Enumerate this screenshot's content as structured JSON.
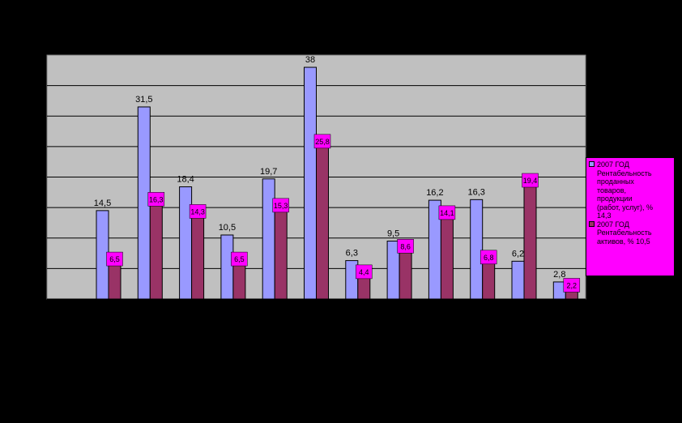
{
  "chart_data": {
    "type": "bar",
    "title": "",
    "xlabel": "",
    "ylabel": "",
    "ylim": [
      0,
      40
    ],
    "grid": true,
    "legend_position": "right",
    "categories": [
      "",
      "",
      "",
      "",
      "",
      "",
      "",
      "",
      "",
      "",
      "",
      ""
    ],
    "series": [
      {
        "name": "2007 ГОД Рентабельность проданных товаров, продукции (работ, услуг), % 14,3",
        "color": "#9999ff",
        "values": [
          14.5,
          31.5,
          18.4,
          10.5,
          19.7,
          38,
          6.3,
          9.5,
          16.2,
          16.3,
          6.2,
          2.8
        ],
        "labels": [
          "14,5",
          "31,5",
          "18,4",
          "10,5",
          "19,7",
          "38",
          "6,3",
          "9,5",
          "16,2",
          "16,3",
          "6,2",
          "2,8"
        ]
      },
      {
        "name": "2007 ГОД Рентабельность активов, % 10,5",
        "color": "#993366",
        "values": [
          6.5,
          16.3,
          14.3,
          6.5,
          15.3,
          25.8,
          4.4,
          8.6,
          14.1,
          6.8,
          19.4,
          2.2
        ],
        "labels": [
          "6,5",
          "16,3",
          "14,3",
          "6,5",
          "15,3",
          "25,8",
          "4,4",
          "8,6",
          "14,1",
          "6,8",
          "19,4",
          "2,2"
        ]
      }
    ]
  },
  "legend": {
    "items": [
      {
        "text": "2007 ГОД\nРентабельность\nпроданных\nтоваров,\nпродукции\n(работ, услуг), %\n14,3"
      },
      {
        "text": "2007 ГОД\nРентабельность\nактивов, % 10,5"
      }
    ]
  },
  "colors": {
    "background": "#000000",
    "plot_area": "#c0c0c0",
    "series1": "#9999ff",
    "series2": "#993366",
    "label_box": "#ff00ff"
  }
}
